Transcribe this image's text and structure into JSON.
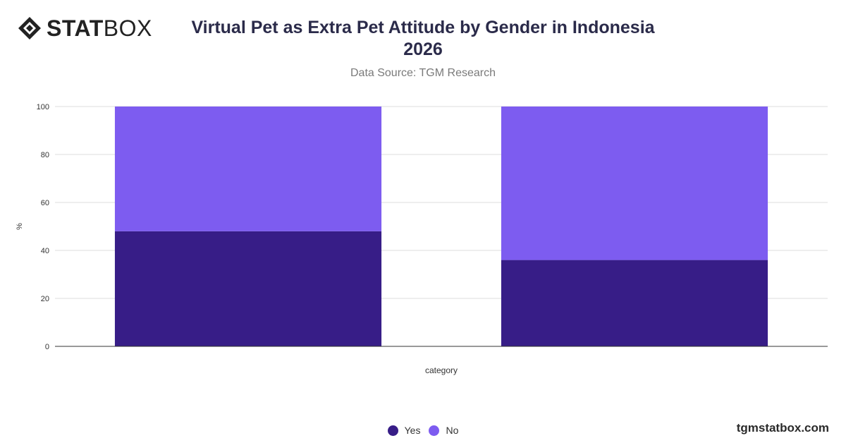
{
  "brand": {
    "logo_bold": "STAT",
    "logo_light": "BOX",
    "watermark": "tgmstatbox.com"
  },
  "header": {
    "title_line1": "Virtual Pet as Extra Pet Attitude by Gender in Indonesia",
    "title_line2": "2026",
    "subtitle": "Data Source: TGM Research"
  },
  "chart_data": {
    "type": "bar",
    "stacked": true,
    "categories": [
      "",
      ""
    ],
    "series": [
      {
        "name": "Yes",
        "values": [
          48,
          36
        ],
        "color": "#371d87"
      },
      {
        "name": "No",
        "values": [
          52,
          64
        ],
        "color": "#7d5cf0"
      }
    ],
    "xlabel": "category",
    "ylabel": "%",
    "ylim": [
      0,
      100
    ],
    "yticks": [
      0,
      20,
      40,
      60,
      80,
      100
    ],
    "grid": true,
    "legend": "bottom-center"
  }
}
